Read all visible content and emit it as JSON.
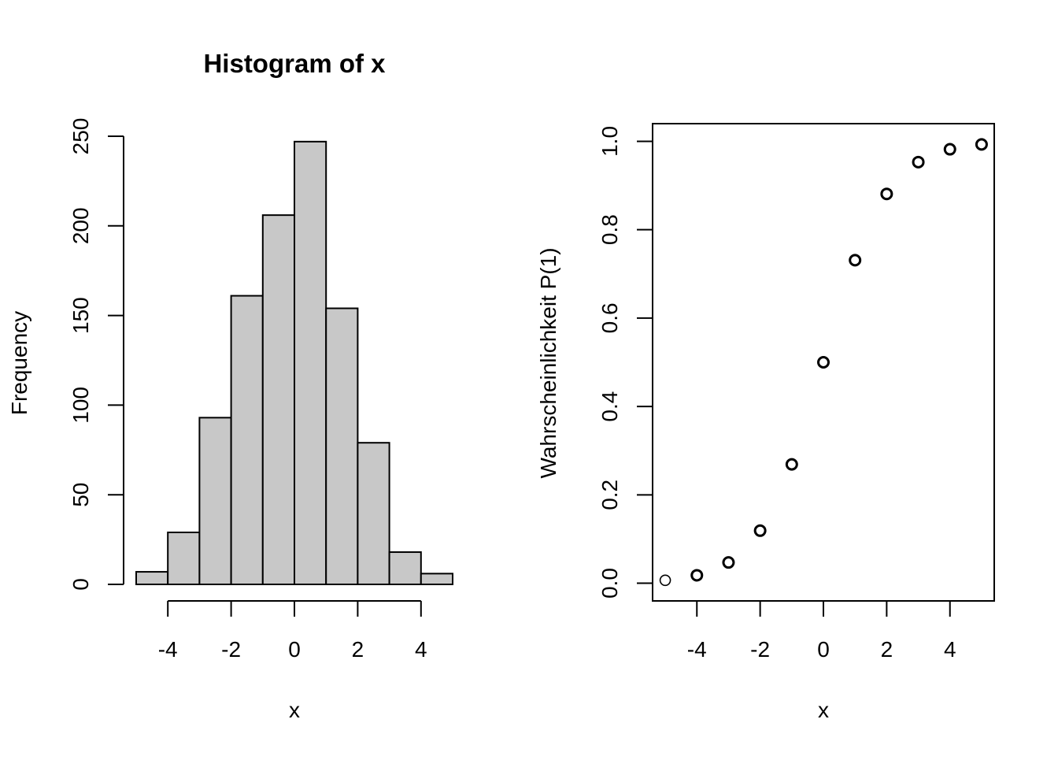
{
  "chart_data": [
    {
      "type": "bar",
      "subtype": "histogram",
      "title": "Histogram of x",
      "xlabel": "x",
      "ylabel": "Frequency",
      "bins": [
        {
          "from": -5,
          "to": -4,
          "count": 7
        },
        {
          "from": -4,
          "to": -3,
          "count": 29
        },
        {
          "from": -3,
          "to": -2,
          "count": 93
        },
        {
          "from": -2,
          "to": -1,
          "count": 161
        },
        {
          "from": -1,
          "to": 0,
          "count": 206
        },
        {
          "from": 0,
          "to": 1,
          "count": 247
        },
        {
          "from": 1,
          "to": 2,
          "count": 154
        },
        {
          "from": 2,
          "to": 3,
          "count": 79
        },
        {
          "from": 3,
          "to": 4,
          "count": 18
        },
        {
          "from": 4,
          "to": 5,
          "count": 6
        }
      ],
      "xlim": [
        -5,
        5
      ],
      "ylim": [
        0,
        250
      ],
      "xticks": [
        -4,
        -2,
        0,
        2,
        4
      ],
      "yticks": [
        0,
        50,
        100,
        150,
        200,
        250
      ],
      "bar_color": "#c8c8c8",
      "box": false,
      "grid": false
    },
    {
      "type": "scatter",
      "title": "",
      "xlabel": "x",
      "ylabel": "Wahrscheinlichkeit P(1)",
      "x": [
        -5,
        -4,
        -3,
        -2,
        -1,
        0,
        1,
        2,
        3,
        4,
        5
      ],
      "y": [
        0.0067,
        0.018,
        0.047,
        0.119,
        0.269,
        0.5,
        0.731,
        0.881,
        0.953,
        0.982,
        0.993
      ],
      "xlim": [
        -5.4,
        5.4
      ],
      "ylim": [
        -0.04,
        1.04
      ],
      "xticks": [
        -4,
        -2,
        0,
        2,
        4
      ],
      "yticks": [
        0.0,
        0.2,
        0.4,
        0.6,
        0.8,
        1.0
      ],
      "ytick_labels": [
        "0.0",
        "0.2",
        "0.4",
        "0.6",
        "0.8",
        "1.0"
      ],
      "marker": "open-circle",
      "box": true,
      "grid": false
    }
  ]
}
